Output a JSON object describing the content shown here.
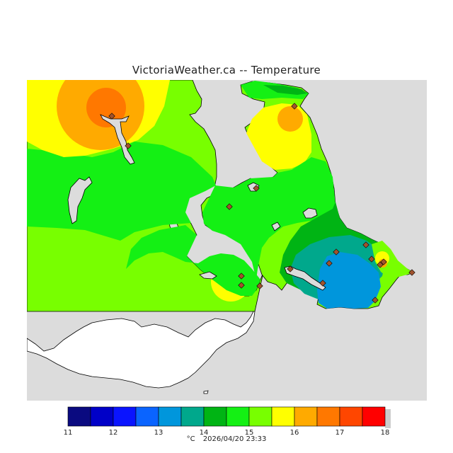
{
  "title": "VictoriaWeather.ca  --  Temperature",
  "colorbar": {
    "ticks": [
      "11",
      "12",
      "13",
      "14",
      "15",
      "16",
      "17",
      "18"
    ],
    "bins": [
      {
        "from": 11.0,
        "to": 11.5,
        "color": "#0a0a80"
      },
      {
        "from": 11.5,
        "to": 12.0,
        "color": "#0000c8"
      },
      {
        "from": 12.0,
        "to": 12.5,
        "color": "#0a14ff"
      },
      {
        "from": 12.5,
        "to": 13.0,
        "color": "#0a64ff"
      },
      {
        "from": 13.0,
        "to": 13.5,
        "color": "#0096dc"
      },
      {
        "from": 13.5,
        "to": 14.0,
        "color": "#00a88c"
      },
      {
        "from": 14.0,
        "to": 14.5,
        "color": "#00b414"
      },
      {
        "from": 14.5,
        "to": 15.0,
        "color": "#14f014"
      },
      {
        "from": 15.0,
        "to": 15.5,
        "color": "#78ff00"
      },
      {
        "from": 15.5,
        "to": 16.0,
        "color": "#ffff00"
      },
      {
        "from": 16.0,
        "to": 16.5,
        "color": "#ffaa00"
      },
      {
        "from": 16.5,
        "to": 17.0,
        "color": "#ff7800"
      },
      {
        "from": 17.0,
        "to": 17.5,
        "color": "#ff4600"
      },
      {
        "from": 17.5,
        "to": 18.0,
        "color": "#ff0000"
      }
    ]
  },
  "footer": {
    "unit": "°C",
    "timestamp": "2026/04/20 23:33"
  },
  "colors": {
    "water": "#dcdcdc",
    "coastline": "#000000",
    "station_marker": "#a0522d"
  }
}
